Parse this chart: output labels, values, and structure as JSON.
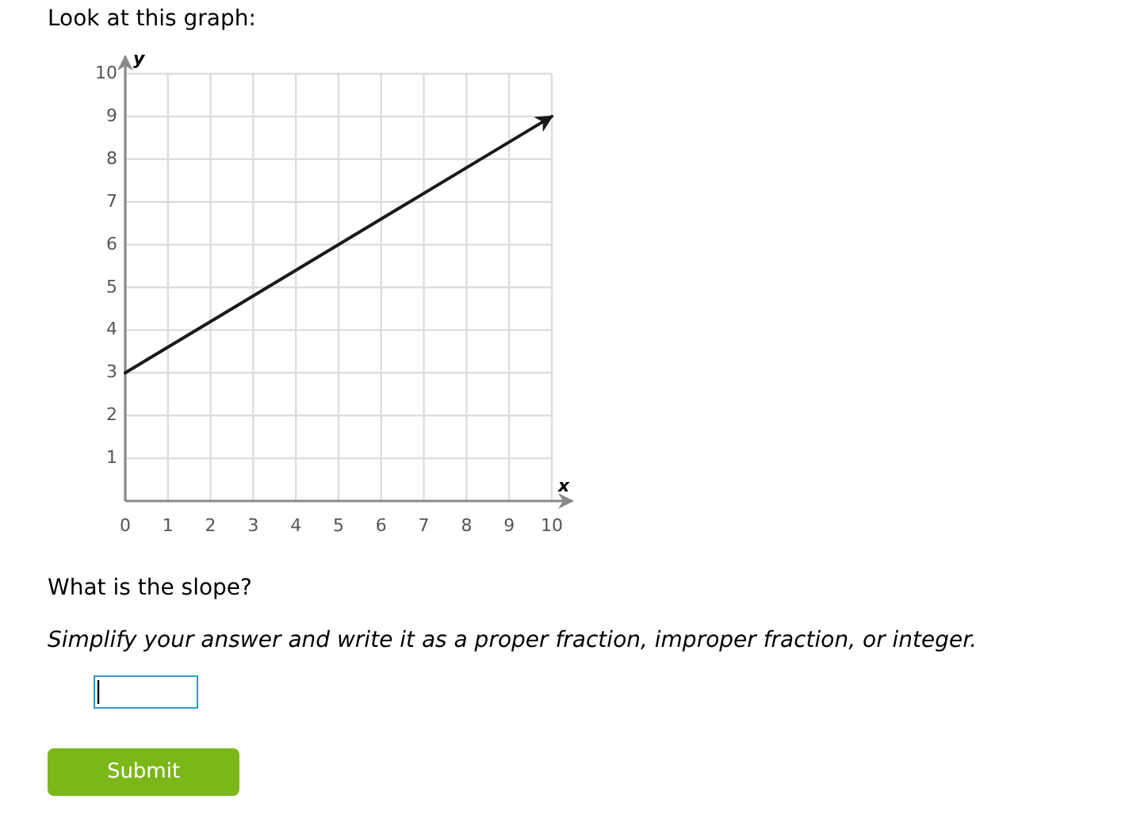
{
  "chart_data": {
    "type": "line",
    "title": "Look at this graph:",
    "xlabel": "x",
    "ylabel": "y",
    "x": [
      0,
      10
    ],
    "values": [
      3,
      9
    ],
    "color": "#1a1a1a",
    "line_style": "solid",
    "xlim": [
      0,
      10
    ],
    "ylim": [
      0,
      10
    ],
    "xticks": [
      0,
      1,
      2,
      3,
      4,
      5,
      6,
      7,
      8,
      9,
      10
    ],
    "yticks": [
      1,
      2,
      3,
      4,
      5,
      6,
      7,
      8,
      9,
      10
    ],
    "grid": true,
    "annotations": [
      "What is the slope?",
      "Simplify your answer and write it as a proper fraction, improper fraction, or integer.",
      "Submit"
    ]
  }
}
